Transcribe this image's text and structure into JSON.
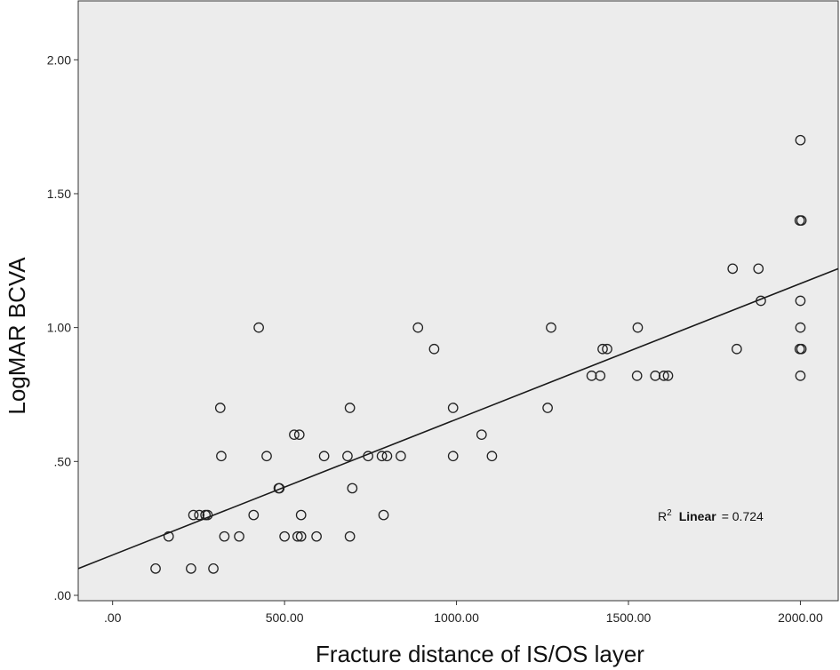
{
  "chart_data": {
    "type": "scatter",
    "xlabel": "Fracture distance of IS/OS layer",
    "ylabel": "LogMAR BCVA",
    "xlim": [
      -100,
      2110
    ],
    "ylim": [
      -0.02,
      2.22
    ],
    "x_ticks": [
      {
        "value": 0,
        "label": ".00"
      },
      {
        "value": 500,
        "label": "500.00"
      },
      {
        "value": 1000,
        "label": "1000.00"
      },
      {
        "value": 1500,
        "label": "1500.00"
      },
      {
        "value": 2000,
        "label": "2000.00"
      }
    ],
    "y_ticks": [
      {
        "value": 0,
        "label": ".00"
      },
      {
        "value": 0.5,
        "label": ".50"
      },
      {
        "value": 1,
        "label": "1.00"
      },
      {
        "value": 1.5,
        "label": "1.50"
      },
      {
        "value": 2,
        "label": "2.00"
      }
    ],
    "points": [
      {
        "x": 125,
        "y": 0.1
      },
      {
        "x": 228,
        "y": 0.1
      },
      {
        "x": 293,
        "y": 0.1
      },
      {
        "x": 163,
        "y": 0.22
      },
      {
        "x": 325,
        "y": 0.22
      },
      {
        "x": 368,
        "y": 0.22
      },
      {
        "x": 500,
        "y": 0.22
      },
      {
        "x": 538,
        "y": 0.22
      },
      {
        "x": 548,
        "y": 0.22
      },
      {
        "x": 593,
        "y": 0.22
      },
      {
        "x": 690,
        "y": 0.22
      },
      {
        "x": 235,
        "y": 0.3
      },
      {
        "x": 252,
        "y": 0.3
      },
      {
        "x": 270,
        "y": 0.3
      },
      {
        "x": 276,
        "y": 0.3
      },
      {
        "x": 410,
        "y": 0.3
      },
      {
        "x": 548,
        "y": 0.3
      },
      {
        "x": 788,
        "y": 0.3
      },
      {
        "x": 483,
        "y": 0.4
      },
      {
        "x": 485,
        "y": 0.4
      },
      {
        "x": 697,
        "y": 0.4
      },
      {
        "x": 316,
        "y": 0.52
      },
      {
        "x": 448,
        "y": 0.52
      },
      {
        "x": 615,
        "y": 0.52
      },
      {
        "x": 683,
        "y": 0.52
      },
      {
        "x": 743,
        "y": 0.52
      },
      {
        "x": 783,
        "y": 0.52
      },
      {
        "x": 798,
        "y": 0.52
      },
      {
        "x": 838,
        "y": 0.52
      },
      {
        "x": 990,
        "y": 0.52
      },
      {
        "x": 1103,
        "y": 0.52
      },
      {
        "x": 528,
        "y": 0.6
      },
      {
        "x": 543,
        "y": 0.6
      },
      {
        "x": 1073,
        "y": 0.6
      },
      {
        "x": 313,
        "y": 0.7
      },
      {
        "x": 690,
        "y": 0.7
      },
      {
        "x": 990,
        "y": 0.7
      },
      {
        "x": 1265,
        "y": 0.7
      },
      {
        "x": 1393,
        "y": 0.82
      },
      {
        "x": 1418,
        "y": 0.82
      },
      {
        "x": 1525,
        "y": 0.82
      },
      {
        "x": 1578,
        "y": 0.82
      },
      {
        "x": 1603,
        "y": 0.82
      },
      {
        "x": 1615,
        "y": 0.82
      },
      {
        "x": 2000,
        "y": 0.82
      },
      {
        "x": 935,
        "y": 0.92
      },
      {
        "x": 1425,
        "y": 0.92
      },
      {
        "x": 1438,
        "y": 0.92
      },
      {
        "x": 1815,
        "y": 0.92
      },
      {
        "x": 1998,
        "y": 0.92
      },
      {
        "x": 2003,
        "y": 0.92
      },
      {
        "x": 425,
        "y": 1.0
      },
      {
        "x": 888,
        "y": 1.0
      },
      {
        "x": 1275,
        "y": 1.0
      },
      {
        "x": 1527,
        "y": 1.0
      },
      {
        "x": 2000,
        "y": 1.0
      },
      {
        "x": 1885,
        "y": 1.1
      },
      {
        "x": 2000,
        "y": 1.1
      },
      {
        "x": 1803,
        "y": 1.22
      },
      {
        "x": 1878,
        "y": 1.22
      },
      {
        "x": 1998,
        "y": 1.4
      },
      {
        "x": 2003,
        "y": 1.4
      },
      {
        "x": 2000,
        "y": 1.7
      }
    ],
    "fit_line": {
      "type": "linear",
      "x0": -100,
      "y0": 0.1,
      "x1": 2110,
      "y1": 1.22,
      "label_parts": {
        "r": "R",
        "sup": "2",
        "linear": "Linear",
        "value": "= 0.724"
      }
    },
    "grid": false,
    "legend": "none"
  },
  "colors": {
    "plot_background": "#ececec",
    "marker_stroke": "#222222",
    "line": "#1a1a1a",
    "axis": "#333333"
  }
}
